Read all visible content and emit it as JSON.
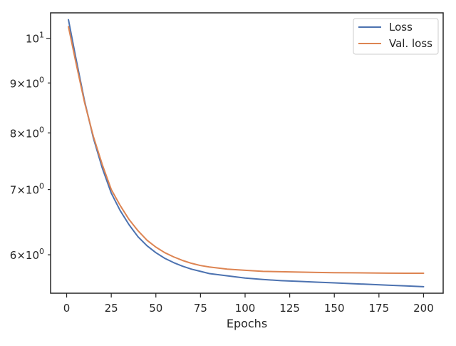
{
  "chart_data": {
    "type": "line",
    "title": "",
    "xlabel": "Epochs",
    "ylabel": "",
    "xlim": [
      -9,
      211
    ],
    "ylim": [
      5.48,
      10.62
    ],
    "yscale": "log",
    "grid": false,
    "legend_position": "top-right",
    "x_ticks": [
      0,
      25,
      50,
      75,
      100,
      125,
      150,
      175,
      200
    ],
    "y_ticks": [
      {
        "value": 6,
        "mantissa": "6",
        "base": "10",
        "exponent": "0"
      },
      {
        "value": 7,
        "mantissa": "7",
        "base": "10",
        "exponent": "0"
      },
      {
        "value": 8,
        "mantissa": "8",
        "base": "10",
        "exponent": "0"
      },
      {
        "value": 9,
        "mantissa": "9",
        "base": "10",
        "exponent": "0"
      },
      {
        "value": 10,
        "mantissa": "",
        "base": "10",
        "exponent": "1"
      }
    ],
    "series": [
      {
        "name": "Loss",
        "color": "#4c72b0",
        "x": [
          1,
          5,
          10,
          15,
          20,
          25,
          30,
          35,
          40,
          45,
          50,
          55,
          60,
          65,
          70,
          75,
          80,
          90,
          100,
          110,
          120,
          130,
          140,
          150,
          160,
          170,
          180,
          190,
          200
        ],
        "y": [
          10.45,
          9.58,
          8.63,
          7.9,
          7.36,
          6.94,
          6.66,
          6.44,
          6.26,
          6.13,
          6.03,
          5.95,
          5.89,
          5.84,
          5.8,
          5.77,
          5.74,
          5.71,
          5.68,
          5.66,
          5.645,
          5.635,
          5.625,
          5.615,
          5.605,
          5.595,
          5.585,
          5.575,
          5.565
        ]
      },
      {
        "name": "Val. loss",
        "color": "#dd8452",
        "x": [
          1,
          5,
          10,
          15,
          20,
          25,
          30,
          35,
          40,
          45,
          50,
          55,
          60,
          65,
          70,
          75,
          80,
          90,
          100,
          110,
          120,
          130,
          140,
          150,
          160,
          170,
          180,
          190,
          200
        ],
        "y": [
          10.28,
          9.48,
          8.6,
          7.93,
          7.42,
          7.0,
          6.74,
          6.52,
          6.35,
          6.21,
          6.11,
          6.03,
          5.97,
          5.92,
          5.88,
          5.85,
          5.83,
          5.8,
          5.785,
          5.77,
          5.765,
          5.76,
          5.755,
          5.752,
          5.75,
          5.748,
          5.746,
          5.745,
          5.745
        ]
      }
    ]
  }
}
